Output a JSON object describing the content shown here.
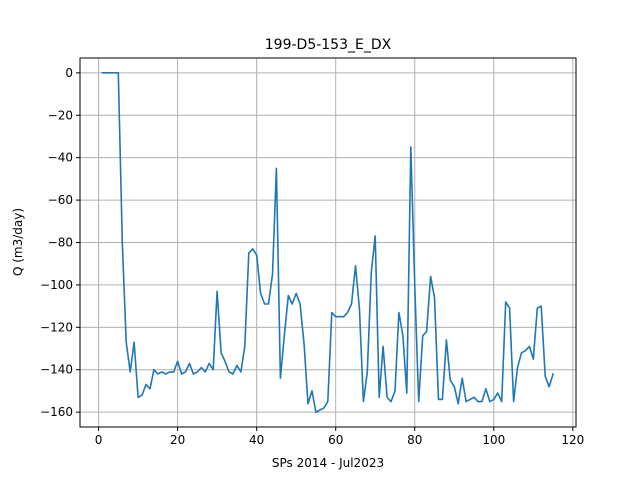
{
  "chart_data": {
    "type": "line",
    "title": "199-D5-153_E_DX",
    "xlabel": "SPs 2014 - Jul2023",
    "ylabel": "Q (m3/day)",
    "xlim": [
      -4.7,
      120.8
    ],
    "ylim": [
      -167,
      7
    ],
    "xticks": [
      0,
      20,
      40,
      60,
      80,
      100,
      120
    ],
    "yticks": [
      0,
      -20,
      -40,
      -60,
      -80,
      -100,
      -120,
      -140,
      -160
    ],
    "x_tick_labels": [
      "0",
      "20",
      "40",
      "60",
      "80",
      "100",
      "120"
    ],
    "y_tick_labels": [
      "0",
      "−20",
      "−40",
      "−60",
      "−80",
      "−100",
      "−120",
      "−140",
      "−160"
    ],
    "grid": true,
    "legend": "none",
    "series": [
      {
        "color": "#1f77b4",
        "x": [
          1,
          2,
          3,
          4,
          5,
          6,
          7,
          8,
          9,
          10,
          11,
          12,
          13,
          14,
          15,
          16,
          17,
          18,
          19,
          20,
          21,
          22,
          23,
          24,
          25,
          26,
          27,
          28,
          29,
          30,
          31,
          32,
          33,
          34,
          35,
          36,
          37,
          38,
          39,
          40,
          41,
          42,
          43,
          44,
          45,
          46,
          47,
          48,
          49,
          50,
          51,
          52,
          53,
          54,
          55,
          56,
          57,
          58,
          59,
          60,
          61,
          62,
          63,
          64,
          65,
          66,
          67,
          68,
          69,
          70,
          71,
          72,
          73,
          74,
          75,
          76,
          77,
          78,
          79,
          80,
          81,
          82,
          83,
          84,
          85,
          86,
          87,
          88,
          89,
          90,
          91,
          92,
          93,
          94,
          95,
          96,
          97,
          98,
          99,
          100,
          101,
          102,
          103,
          104,
          105,
          106,
          107,
          108,
          109,
          110,
          111,
          112,
          113,
          114,
          115
        ],
        "values": [
          0,
          0,
          0,
          0,
          0,
          -80,
          -127,
          -141,
          -127,
          -153,
          -152,
          -147,
          -149,
          -140,
          -142,
          -141,
          -142,
          -141,
          -141,
          -136,
          -142,
          -141,
          -137,
          -142,
          -141,
          -139,
          -141,
          -137,
          -140,
          -103,
          -132,
          -136,
          -141,
          -142,
          -138,
          -141,
          -129,
          -85,
          -83,
          -86,
          -104,
          -109,
          -109,
          -95,
          -45,
          -144,
          -124,
          -105,
          -109,
          -104,
          -109,
          -128,
          -156,
          -150,
          -160,
          -159,
          -158,
          -155,
          -113,
          -115,
          -115,
          -115,
          -113,
          -109,
          -91,
          -111,
          -155,
          -141,
          -94,
          -77,
          -153,
          -129,
          -153,
          -155,
          -150,
          -113,
          -124,
          -151,
          -35,
          -101,
          -155,
          -124,
          -122,
          -96,
          -106,
          -154,
          -154,
          -126,
          -145,
          -148,
          -156,
          -144,
          -155,
          -154,
          -153,
          -155,
          -155,
          -149,
          -155,
          -154,
          -151,
          -155,
          -108,
          -111,
          -155,
          -139,
          -132,
          -131,
          -129,
          -135,
          -111,
          -110,
          -143,
          -148,
          -142
        ]
      }
    ]
  }
}
